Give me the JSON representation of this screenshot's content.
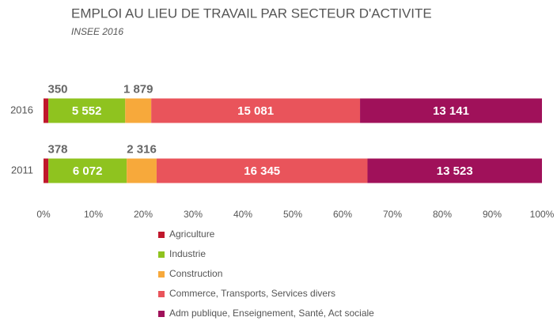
{
  "chart_data": {
    "type": "bar",
    "orientation": "horizontal",
    "stacking": "percent",
    "title": "EMPLOI AU LIEU DE TRAVAIL PAR SECTEUR D'ACTIVITE",
    "subtitle": "INSEE 2016",
    "categories": [
      "2016",
      "2011"
    ],
    "series": [
      {
        "name": "Agriculture",
        "color": "#c0172c",
        "values": [
          350,
          378
        ],
        "value_labels": [
          "350",
          "378"
        ]
      },
      {
        "name": "Industrie",
        "color": "#8fc31f",
        "values": [
          5552,
          6072
        ],
        "value_labels": [
          "5 552",
          "6 072"
        ]
      },
      {
        "name": "Construction",
        "color": "#f7a93b",
        "values": [
          1879,
          2316
        ],
        "value_labels": [
          "1 879",
          "2 316"
        ]
      },
      {
        "name": "Commerce, Transports, Services divers",
        "color": "#e9545b",
        "values": [
          15081,
          16345
        ],
        "value_labels": [
          "15 081",
          "16 345"
        ]
      },
      {
        "name": "Adm publique, Enseignement, Santé, Act sociale",
        "color": "#a0115a",
        "values": [
          13141,
          13523
        ],
        "value_labels": [
          "13 141",
          "13 523"
        ]
      }
    ],
    "xlim": [
      0,
      100
    ],
    "xticks": [
      {
        "value": 0,
        "label": "0%"
      },
      {
        "value": 10,
        "label": "10%"
      },
      {
        "value": 20,
        "label": "20%"
      },
      {
        "value": 30,
        "label": "30%"
      },
      {
        "value": 40,
        "label": "40%"
      },
      {
        "value": 50,
        "label": "50%"
      },
      {
        "value": 60,
        "label": "60%"
      },
      {
        "value": 70,
        "label": "70%"
      },
      {
        "value": 80,
        "label": "80%"
      },
      {
        "value": 90,
        "label": "90%"
      },
      {
        "value": 100,
        "label": "100%"
      }
    ],
    "grid": false,
    "legend": "bottom"
  }
}
